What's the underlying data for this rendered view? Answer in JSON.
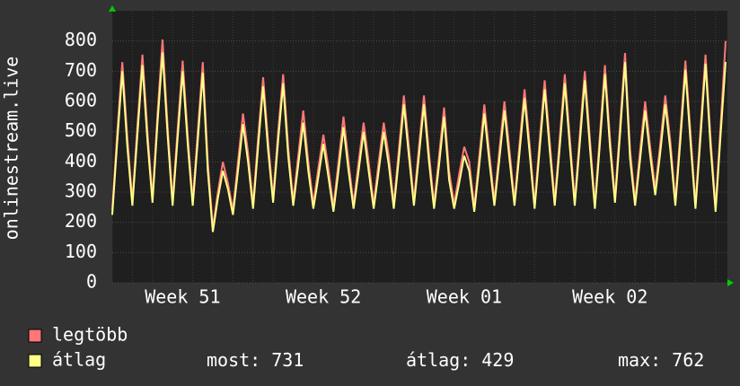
{
  "chart_data": {
    "type": "line",
    "y_label": "onlinestream.live",
    "categories": [
      null,
      null,
      null,
      null,
      null,
      null,
      null,
      null,
      null,
      null,
      null,
      null,
      null,
      null,
      "Week 51",
      null,
      null,
      null,
      null,
      null,
      null,
      null,
      null,
      null,
      null,
      null,
      null,
      null,
      null,
      null,
      null,
      null,
      null,
      null,
      null,
      null,
      null,
      null,
      null,
      null,
      null,
      null,
      "Week 52",
      null,
      null,
      null,
      null,
      null,
      null,
      null,
      null,
      null,
      null,
      null,
      null,
      null,
      null,
      null,
      null,
      null,
      null,
      null,
      null,
      null,
      null,
      null,
      null,
      null,
      null,
      null,
      "Week 01",
      null,
      null,
      null,
      null,
      null,
      null,
      null,
      null,
      null,
      null,
      null,
      null,
      null,
      null,
      null,
      null,
      null,
      null,
      null,
      null,
      null,
      null,
      null,
      null,
      null,
      null,
      null,
      null,
      "Week 02",
      null,
      null,
      null,
      null,
      null,
      null,
      null,
      null,
      null,
      null,
      null,
      null,
      null,
      null,
      null,
      null,
      null,
      null,
      null,
      null,
      null,
      null,
      null
    ],
    "series": [
      {
        "name": "legtöbb",
        "color": "#ff7777",
        "values": [
          240,
          500,
          730,
          480,
          270,
          520,
          755,
          500,
          280,
          560,
          805,
          520,
          270,
          510,
          735,
          490,
          270,
          500,
          730,
          400,
          180,
          300,
          400,
          330,
          240,
          400,
          560,
          430,
          260,
          480,
          680,
          470,
          280,
          500,
          690,
          450,
          270,
          420,
          570,
          400,
          260,
          380,
          490,
          380,
          250,
          400,
          550,
          400,
          260,
          400,
          530,
          400,
          260,
          400,
          530,
          420,
          260,
          440,
          620,
          450,
          270,
          450,
          620,
          430,
          260,
          420,
          580,
          370,
          260,
          360,
          450,
          400,
          250,
          420,
          590,
          430,
          270,
          440,
          600,
          440,
          270,
          460,
          640,
          460,
          260,
          470,
          670,
          470,
          270,
          480,
          690,
          480,
          270,
          490,
          700,
          480,
          260,
          490,
          720,
          480,
          280,
          520,
          760,
          440,
          270,
          440,
          600,
          450,
          310,
          460,
          620,
          470,
          270,
          500,
          735,
          500,
          260,
          510,
          755,
          480,
          250,
          520,
          800
        ]
      },
      {
        "name": "átlag",
        "color": "#ffff88",
        "values": [
          225,
          470,
          700,
          450,
          255,
          490,
          720,
          470,
          265,
          530,
          762,
          490,
          255,
          480,
          700,
          460,
          255,
          470,
          695,
          370,
          168,
          280,
          370,
          310,
          225,
          370,
          525,
          400,
          245,
          450,
          650,
          440,
          265,
          470,
          660,
          420,
          255,
          390,
          530,
          370,
          245,
          350,
          460,
          350,
          235,
          370,
          515,
          370,
          245,
          370,
          500,
          370,
          245,
          370,
          500,
          390,
          245,
          410,
          590,
          420,
          255,
          420,
          590,
          400,
          245,
          390,
          550,
          340,
          245,
          330,
          420,
          370,
          235,
          390,
          560,
          400,
          255,
          410,
          570,
          410,
          255,
          430,
          610,
          430,
          245,
          440,
          640,
          440,
          255,
          450,
          660,
          450,
          255,
          460,
          670,
          450,
          245,
          460,
          690,
          450,
          265,
          490,
          730,
          410,
          255,
          410,
          570,
          420,
          290,
          430,
          590,
          440,
          255,
          470,
          705,
          470,
          245,
          480,
          725,
          450,
          235,
          490,
          731
        ]
      }
    ],
    "stats": [
      {
        "label": "most:",
        "value": 731
      },
      {
        "label": "átlag:",
        "value": 429
      },
      {
        "label": "max:",
        "value": 762
      }
    ],
    "ylim": [
      0,
      900
    ],
    "yticks": [
      0,
      100,
      200,
      300,
      400,
      500,
      600,
      700,
      800
    ],
    "grid": true
  }
}
